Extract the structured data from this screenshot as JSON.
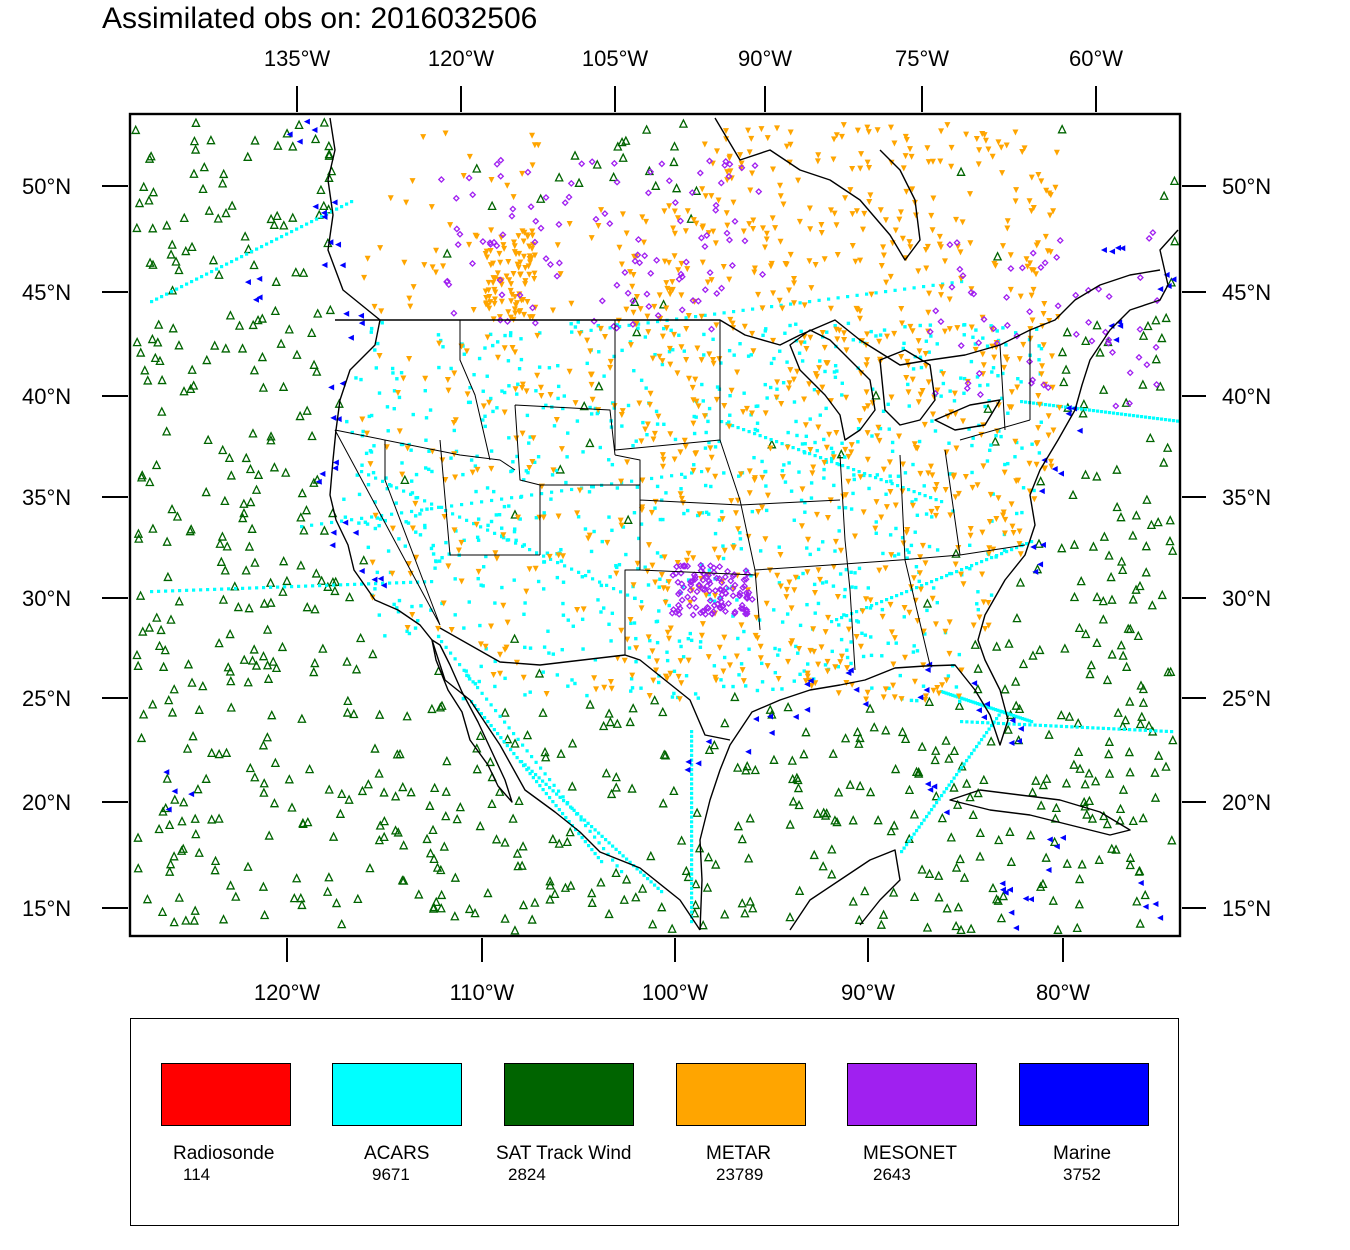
{
  "title": "Assimilated obs on: 2016032506",
  "top_axis": {
    "ticks": [
      "135°W",
      "120°W",
      "105°W",
      "90°W",
      "75°W",
      "60°W"
    ]
  },
  "bottom_axis": {
    "ticks": [
      "120°W",
      "110°W",
      "100°W",
      "90°W",
      "80°W"
    ]
  },
  "left_axis": {
    "ticks": [
      "50°N",
      "45°N",
      "40°N",
      "35°N",
      "30°N",
      "25°N",
      "20°N",
      "15°N"
    ]
  },
  "right_axis": {
    "ticks": [
      "50°N",
      "45°N",
      "40°N",
      "35°N",
      "30°N",
      "25°N",
      "20°N",
      "15°N"
    ]
  },
  "legend": [
    {
      "name": "Radiosonde",
      "count": "114",
      "color": "#ff0000"
    },
    {
      "name": "ACARS",
      "count": "9671",
      "color": "#00ffff"
    },
    {
      "name": "SAT Track Wind",
      "count": "2824",
      "color": "#006400"
    },
    {
      "name": "METAR",
      "count": "23789",
      "color": "#ffa500"
    },
    {
      "name": "MESONET",
      "count": "2643",
      "color": "#a020f0"
    },
    {
      "name": "Marine",
      "count": "3752",
      "color": "#0000ff"
    }
  ],
  "colors": {
    "frame": "#000000",
    "boundary": "#000000"
  }
}
